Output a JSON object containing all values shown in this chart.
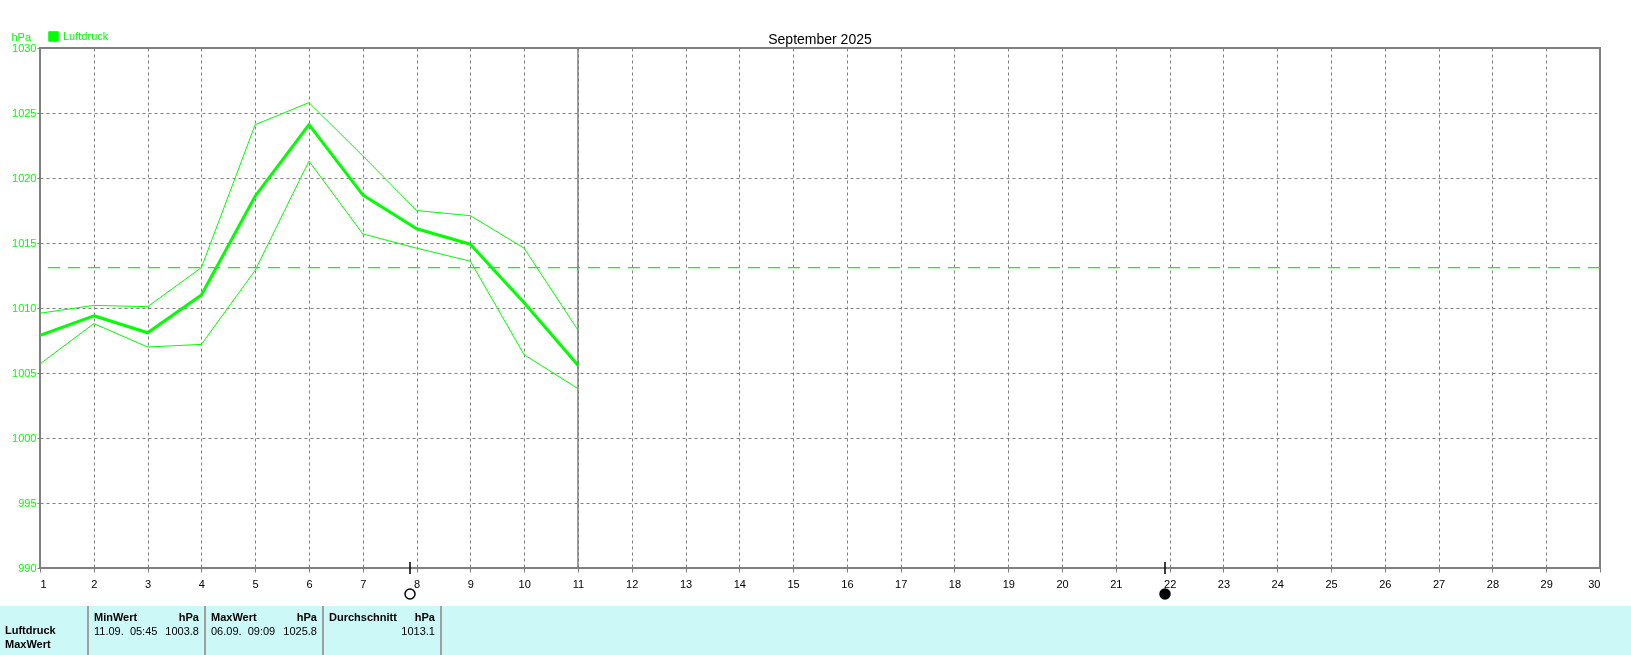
{
  "chart_data": {
    "type": "line",
    "title": "September 2025",
    "ylabel": "hPa",
    "x": [
      1,
      2,
      3,
      4,
      5,
      6,
      7,
      8,
      9,
      10,
      11
    ],
    "series": [
      {
        "name": "Luftdruck",
        "color": "#00ff00",
        "values": [
          1007.9,
          1009.4,
          1008.1,
          1011.0,
          1018.6,
          1024.1,
          1018.7,
          1016.1,
          1014.9,
          1010.4,
          1005.6
        ]
      },
      {
        "color": "#00ff00",
        "values": [
          1005.7,
          1008.8,
          1007.0,
          1007.2,
          1012.9,
          1021.3,
          1015.7,
          1014.6,
          1013.6,
          1006.4,
          1003.8
        ]
      },
      {
        "color": "#00ff00",
        "values": [
          1009.6,
          1010.2,
          1010.1,
          1013.1,
          1024.1,
          1025.8,
          1021.7,
          1017.5,
          1017.1,
          1014.6,
          1008.3
        ]
      }
    ],
    "xlim": [
      1,
      30
    ],
    "xticks": [
      1,
      2,
      3,
      4,
      5,
      6,
      7,
      8,
      9,
      10,
      11,
      12,
      13,
      14,
      15,
      16,
      17,
      18,
      19,
      20,
      21,
      22,
      23,
      24,
      25,
      26,
      27,
      28,
      29,
      30
    ],
    "ylim": [
      990,
      1030
    ],
    "yticks": [
      990,
      995,
      1000,
      1005,
      1010,
      1015,
      1020,
      1025,
      1030
    ],
    "grid": true,
    "legend": "top left",
    "marker": "none",
    "line_style": "solid",
    "ref_lines": [
      {
        "axis": "y",
        "value": 1013.1,
        "color": "#00ff00",
        "line_style": "dashed"
      },
      {
        "axis": "x",
        "value": 11,
        "color": "#808080",
        "line_style": "solid"
      }
    ],
    "annotations": [
      "Luftdruck",
      "MaxWert",
      "MinWert",
      "hPa",
      "11.09.  05:45",
      "1003.8",
      "MaxWert",
      "hPa",
      "06.09.  09:09",
      "1025.8",
      "Durchschnitt",
      "hPa",
      "1013.1"
    ]
  }
}
